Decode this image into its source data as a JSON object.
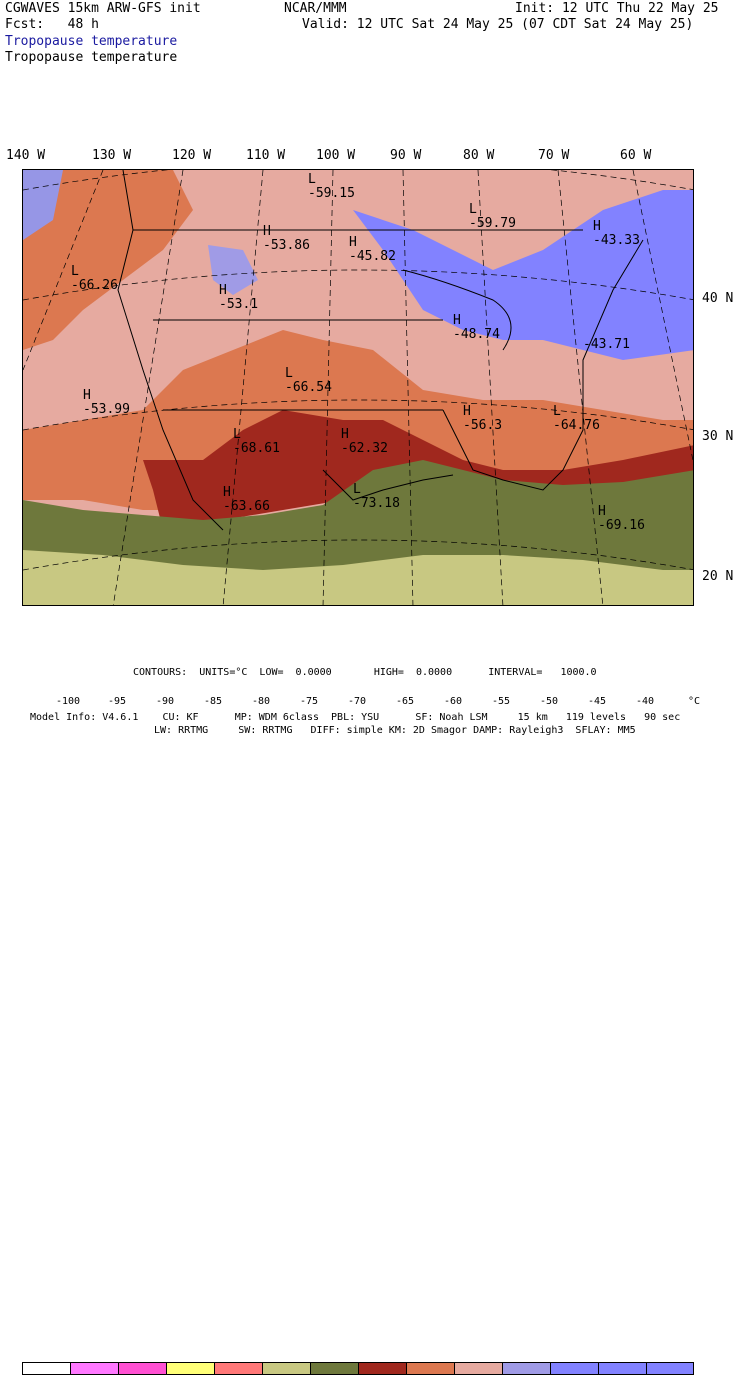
{
  "header": {
    "left_line1": "CGWAVES 15km ARW-GFS init",
    "left_line2": "Fcst:   48 h",
    "center": "NCAR/MMM",
    "init": "Init: 12 UTC Thu 22 May 25",
    "valid": "Valid: 12 UTC Sat 24 May 25 (07 CDT Sat 24 May 25)",
    "field_title_colored": "Tropopause temperature",
    "field_title": "Tropopause temperature"
  },
  "longitude_labels": [
    "140 W",
    "130 W",
    "120 W",
    "110 W",
    "100 W",
    "90 W",
    "80 W",
    "70 W",
    "60 W"
  ],
  "latitude_labels": [
    "40 N",
    "30 N",
    "20 N"
  ],
  "map_labels": [
    {
      "kind": "L",
      "value": "-59.15"
    },
    {
      "kind": "L",
      "value": "-59.79"
    },
    {
      "kind": "H",
      "value": "-53.86"
    },
    {
      "kind": "H",
      "value": "-45.82"
    },
    {
      "kind": "H",
      "value": "-43.33"
    },
    {
      "kind": "L",
      "value": "-66.26"
    },
    {
      "kind": "H",
      "value": "-53.1"
    },
    {
      "kind": "H",
      "value": "-48.74"
    },
    {
      "kind": "",
      "value": "-43.71"
    },
    {
      "kind": "L",
      "value": "-66.54"
    },
    {
      "kind": "H",
      "value": "-53.99"
    },
    {
      "kind": "L",
      "value": "-68.61"
    },
    {
      "kind": "H",
      "value": "-62.32"
    },
    {
      "kind": "H",
      "value": "-56.3"
    },
    {
      "kind": "L",
      "value": "-64.76"
    },
    {
      "kind": "H",
      "value": "-63.66"
    },
    {
      "kind": "L",
      "value": "-73.18"
    },
    {
      "kind": "H",
      "value": "-69.16"
    }
  ],
  "contours_line": "CONTOURS:  UNITS=°C  LOW=  0.0000       HIGH=  0.0000      INTERVAL=   1000.0",
  "legend": {
    "colors": [
      "#ffffff",
      "#ff78ff",
      "#ff50d2",
      "#ffff78",
      "#ff7878",
      "#c8c882",
      "#6e783c",
      "#a0281e",
      "#dc7850",
      "#e6aaa0",
      "#a09be6",
      "#8282ff",
      "#8282ff",
      "#8282ff"
    ],
    "ticks": [
      "-100",
      "-95",
      "-90",
      "-85",
      "-80",
      "-75",
      "-70",
      "-65",
      "-60",
      "-55",
      "-50",
      "-45",
      "-40",
      "°C"
    ]
  },
  "footer": {
    "line1": "Model Info: V4.6.1    CU: KF      MP: WDM 6class  PBL: YSU      SF: Noah LSM     15 km   119 levels   90 sec",
    "line2": "LW: RRTMG     SW: RRTMG   DIFF: simple KM: 2D Smagor DAMP: Rayleigh3  SFLAY: MM5"
  },
  "colors": {
    "title_blue": "#1a1aa0",
    "band_lavender": "#9696e6",
    "band_blue": "#8282ff",
    "band_pink": "#e6aaa0",
    "band_orange": "#dc7850",
    "band_red": "#a0281e",
    "band_olive": "#6e783c",
    "band_khaki": "#c8c882"
  }
}
